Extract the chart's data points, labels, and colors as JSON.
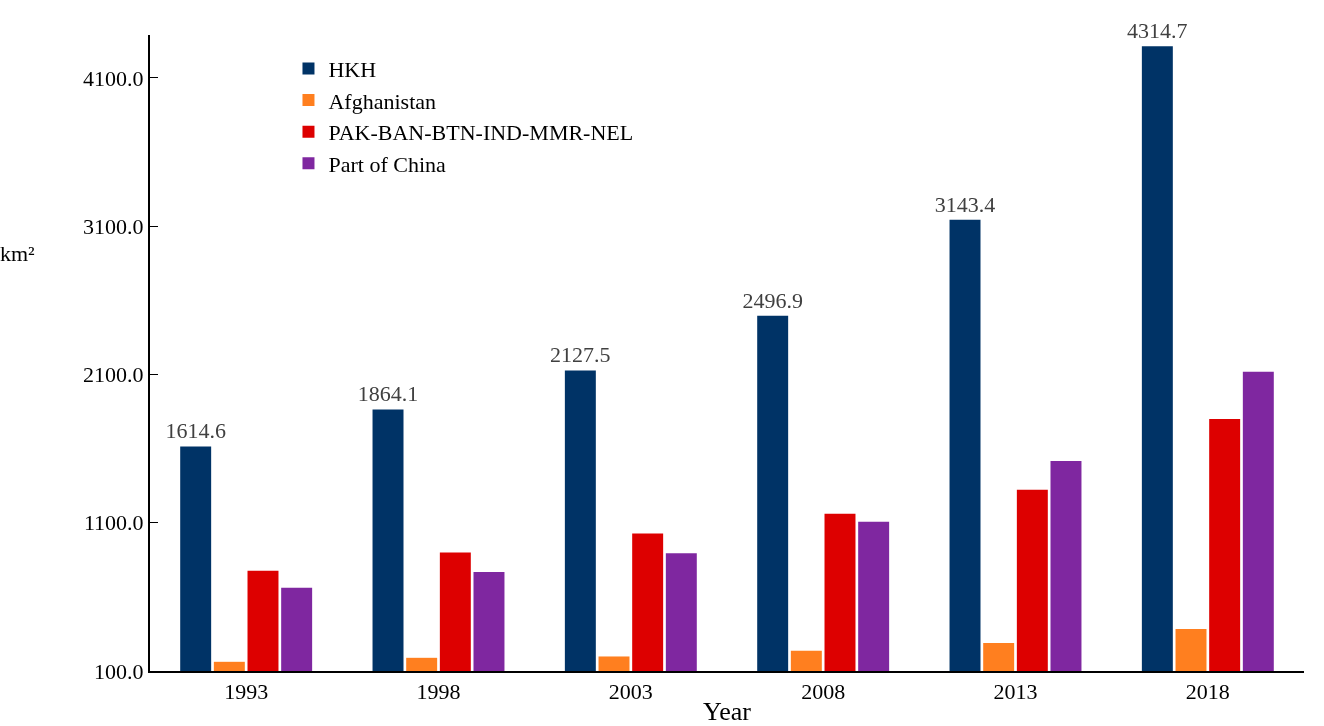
{
  "chart_data": {
    "type": "bar",
    "xlabel": "Year",
    "ylabel": "km²",
    "categories": [
      "1993",
      "1998",
      "2003",
      "2008",
      "2013",
      "2018"
    ],
    "series": [
      {
        "name": "HKH",
        "color": "#003366",
        "values": [
          1614.6,
          1864.1,
          2127.5,
          2496.9,
          3143.4,
          4314.7
        ],
        "value_labels": [
          "1614.6",
          "1864.1",
          "2127.5",
          "2496.9",
          "3143.4",
          "4314.7"
        ]
      },
      {
        "name": "Afghanistan",
        "color": "#ff7f1f",
        "values": [
          162,
          189,
          198,
          237,
          289,
          383
        ]
      },
      {
        "name": "PAK-BAN-BTN-IND-MMR-NEL",
        "color": "#dd0000",
        "values": [
          776,
          899,
          1027,
          1161,
          1323,
          1800
        ]
      },
      {
        "name": "Part of China",
        "color": "#7f27a0",
        "values": [
          662,
          767,
          894,
          1107,
          1516,
          2118
        ]
      }
    ],
    "ylim": [
      100,
      4390
    ],
    "yticks": [
      {
        "value": 100,
        "label": "100.0"
      },
      {
        "value": 1100,
        "label": "1100.0"
      },
      {
        "value": 2100,
        "label": "2100.0"
      },
      {
        "value": 3100,
        "label": "3100.0"
      },
      {
        "value": 4100,
        "label": "4100.0"
      }
    ],
    "grid": false,
    "legend": "top left"
  }
}
